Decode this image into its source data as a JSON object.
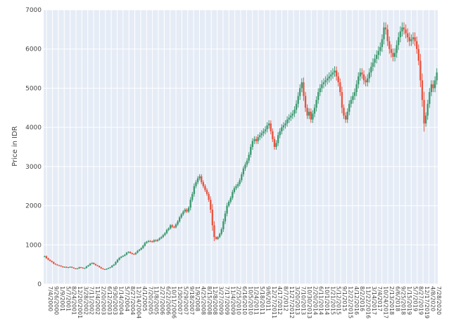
{
  "chart_data": {
    "type": "line",
    "title": "",
    "xlabel": "",
    "ylabel": "Price in IDR",
    "ylim": [
      0,
      7000
    ],
    "y_ticks": [
      0,
      1000,
      2000,
      3000,
      4000,
      5000,
      6000,
      7000
    ],
    "grid": true,
    "legend": "none",
    "colors": {
      "plot_bg": "#e5ecf6",
      "up": "#3d9970",
      "down": "#e8533f"
    },
    "x_tick_labels": [
      "7/4/2000",
      "9/26/2000",
      "1/9/2001",
      "5/7/2001",
      "8/24/2001",
      "12/20/2001",
      "3/28/2002",
      "7/11/2002",
      "11/4/2002",
      "2/20/2003",
      "6/12/2003",
      "9/30/2003",
      "1/14/2004",
      "5/7/2004",
      "8/27/2004",
      "12/14/2004",
      "4/1/2005",
      "7/20/2005",
      "11/8/2005",
      "2/27/2006",
      "6/22/2006",
      "10/11/2006",
      "1/30/2007",
      "5/29/2007",
      "9/18/2007",
      "1/9/2008",
      "4/25/2008",
      "8/15/2008",
      "12/8/2008",
      "3/27/2009",
      "7/17/2009",
      "11/4/2009",
      "2/25/2010",
      "6/16/2010",
      "10/5/2010",
      "1/24/2011",
      "5/18/2011",
      "9/6/2011",
      "12/27/2011",
      "4/17/2012",
      "8/7/2012",
      "11/27/2012",
      "3/20/2013",
      "7/10/2013",
      "10/30/2013",
      "2/20/2014",
      "6/11/2014",
      "10/1/2014",
      "1/21/2015",
      "5/12/2015",
      "9/1/2015",
      "12/22/2015",
      "4/12/2016",
      "8/2/2016",
      "11/22/2016",
      "3/14/2017",
      "7/4/2017",
      "10/24/2017",
      "2/13/2018",
      "6/6/2018",
      "9/25/2018",
      "1/15/2019",
      "5/7/2019",
      "8/27/2019",
      "12/17/2019",
      "4/8/2020",
      "7/28/2020"
    ],
    "series": [
      {
        "values": [
          710,
          660,
          620,
          590,
          560,
          520,
          500,
          480,
          470,
          450,
          430,
          440,
          420,
          430,
          440,
          420,
          400,
          390,
          400,
          430,
          420,
          400,
          410,
          450,
          480,
          520,
          540,
          510,
          480,
          460,
          430,
          400,
          380,
          370,
          390,
          410,
          430,
          470,
          500,
          560,
          620,
          670,
          700,
          720,
          750,
          800,
          820,
          790,
          770,
          760,
          800,
          850,
          880,
          920,
          980,
          1050,
          1080,
          1100,
          1090,
          1080,
          1120,
          1100,
          1130,
          1170,
          1200,
          1250,
          1300,
          1380,
          1420,
          1500,
          1460,
          1450,
          1520,
          1600,
          1700,
          1780,
          1850,
          1900,
          1850,
          1950,
          2150,
          2300,
          2500,
          2600,
          2700,
          2750,
          2600,
          2500,
          2400,
          2300,
          2150,
          1900,
          1500,
          1200,
          1150,
          1200,
          1280,
          1400,
          1600,
          1800,
          2000,
          2100,
          2200,
          2350,
          2450,
          2500,
          2550,
          2650,
          2800,
          2950,
          3050,
          3150,
          3300,
          3500,
          3650,
          3700,
          3650,
          3750,
          3800,
          3850,
          3900,
          3950,
          4050,
          4100,
          3900,
          3700,
          3500,
          3600,
          3800,
          3900,
          4000,
          4050,
          4100,
          4200,
          4250,
          4300,
          4350,
          4450,
          4600,
          4800,
          5000,
          5150,
          4800,
          4500,
          4300,
          4400,
          4200,
          4350,
          4500,
          4700,
          4900,
          5000,
          5100,
          5150,
          5200,
          5250,
          5300,
          5350,
          5400,
          5450,
          5300,
          5150,
          4900,
          4500,
          4300,
          4200,
          4400,
          4600,
          4700,
          4800,
          4900,
          5100,
          5300,
          5400,
          5350,
          5200,
          5150,
          5250,
          5400,
          5550,
          5650,
          5750,
          5850,
          5950,
          6050,
          6250,
          6550,
          6500,
          6200,
          6000,
          5900,
          5800,
          5900,
          6100,
          6300,
          6450,
          6550,
          6500,
          6400,
          6300,
          6200,
          6250,
          6300,
          6200,
          6000,
          5700,
          5200,
          4700,
          4100,
          4300,
          4600,
          4900,
          5100,
          5000,
          5200,
          5400
        ]
      }
    ]
  }
}
